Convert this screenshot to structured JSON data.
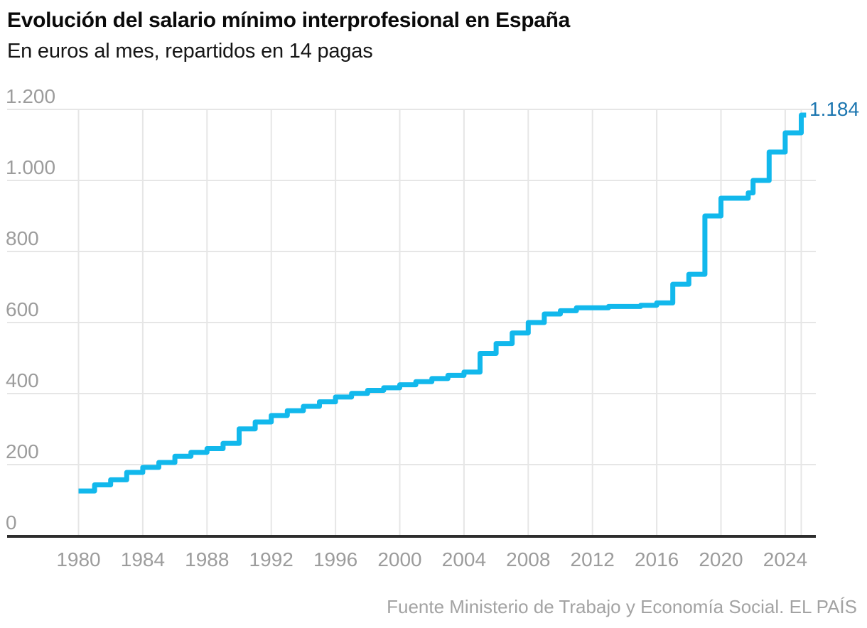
{
  "header": {
    "title": "Evolución del salario mínimo interprofesional en España",
    "subtitle": "En euros al mes, repartidos en 14 pagas"
  },
  "footer": {
    "source": "Fuente Ministerio de Trabajo y Economía Social. EL PAÍS"
  },
  "chart_data": {
    "type": "line",
    "subtype": "step-after",
    "title": "Evolución del salario mínimo interprofesional en España",
    "subtitle": "En euros al mes, repartidos en 14 pagas",
    "xlabel": "",
    "ylabel": "euros al mes (14 pagas)",
    "xlim": [
      1980,
      2025.3
    ],
    "ylim": [
      0,
      1200
    ],
    "grid": true,
    "legend": "none",
    "x_ticks": [
      1980,
      1984,
      1988,
      1992,
      1996,
      2000,
      2004,
      2008,
      2012,
      2016,
      2020,
      2024
    ],
    "x_grid_extra": [
      2025
    ],
    "y_ticks": [
      {
        "value": 0,
        "label": "0"
      },
      {
        "value": 200,
        "label": "200"
      },
      {
        "value": 400,
        "label": "400"
      },
      {
        "value": 600,
        "label": "600"
      },
      {
        "value": 800,
        "label": "800"
      },
      {
        "value": 1000,
        "label": "1.000"
      },
      {
        "value": 1200,
        "label": "1.200"
      }
    ],
    "series": [
      {
        "name": "Salario mínimo interprofesional",
        "points": [
          [
            1980,
            125.8
          ],
          [
            1981,
            143.1
          ],
          [
            1982,
            157.2
          ],
          [
            1983,
            178.0
          ],
          [
            1984,
            192.2
          ],
          [
            1985,
            205.9
          ],
          [
            1986,
            223.4
          ],
          [
            1987,
            234.6
          ],
          [
            1988,
            245.1
          ],
          [
            1989,
            259.8
          ],
          [
            1990,
            300.6
          ],
          [
            1991,
            320.0
          ],
          [
            1992,
            338.3
          ],
          [
            1993,
            351.8
          ],
          [
            1994,
            364.0
          ],
          [
            1995,
            376.8
          ],
          [
            1996,
            390.2
          ],
          [
            1997,
            400.5
          ],
          [
            1998,
            408.9
          ],
          [
            1999,
            416.3
          ],
          [
            2000,
            424.8
          ],
          [
            2001,
            433.5
          ],
          [
            2002,
            442.2
          ],
          [
            2003,
            451.2
          ],
          [
            2004,
            460.5
          ],
          [
            2005,
            513.0
          ],
          [
            2006,
            540.9
          ],
          [
            2007,
            570.6
          ],
          [
            2008,
            600.0
          ],
          [
            2009,
            624.0
          ],
          [
            2010,
            633.3
          ],
          [
            2011,
            641.4
          ],
          [
            2013,
            645.3
          ],
          [
            2015,
            648.6
          ],
          [
            2016,
            655.2
          ],
          [
            2017,
            707.7
          ],
          [
            2018,
            735.9
          ],
          [
            2019,
            900.0
          ],
          [
            2020,
            950.0
          ],
          [
            2021.7,
            965.0
          ],
          [
            2022,
            1000.0
          ],
          [
            2023,
            1080.0
          ],
          [
            2024,
            1134.0
          ],
          [
            2025,
            1184.0
          ]
        ]
      }
    ],
    "end_value": 1184,
    "end_label": "1.184",
    "colors": {
      "line": "#12b8ec",
      "end_label": "#1c76b0",
      "grid": "#e6e6e6",
      "axis": "#2d2d2d",
      "tick_text": "#9c9c9c"
    }
  }
}
